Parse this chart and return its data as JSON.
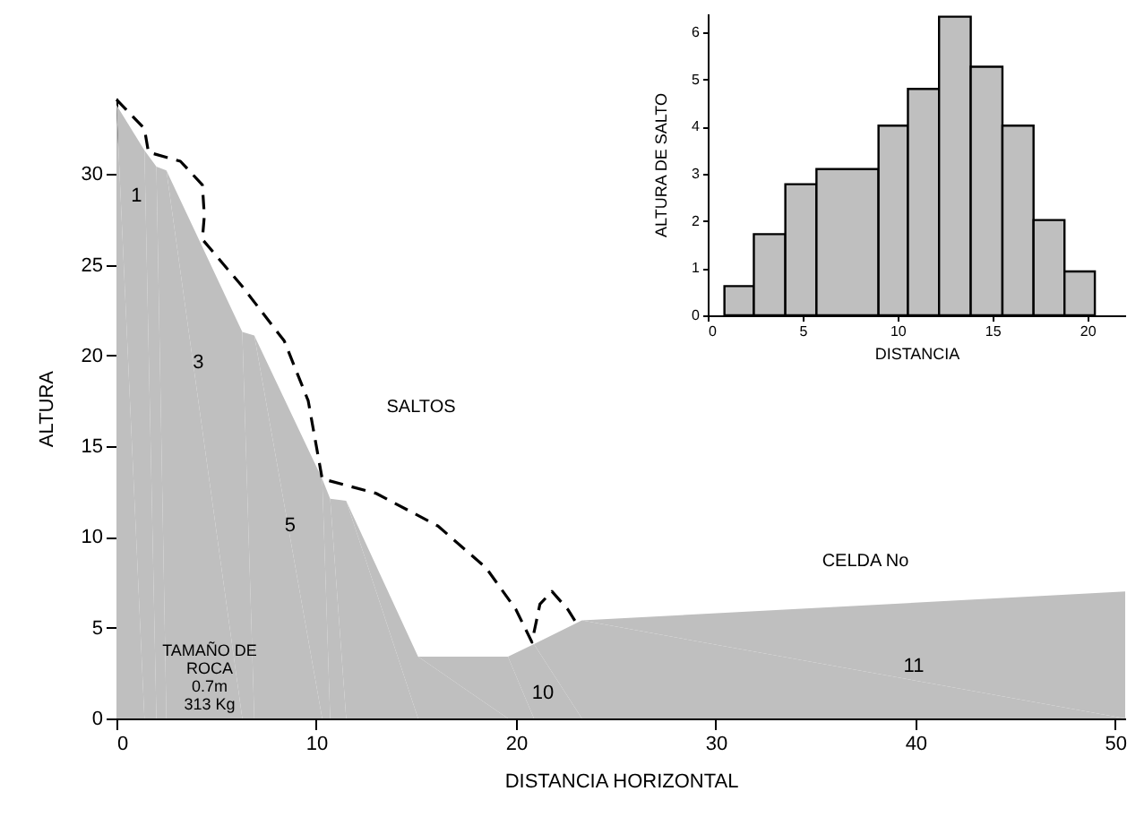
{
  "chart_data": [
    {
      "type": "area",
      "xlabel": "DISTANCIA HORIZONTAL",
      "ylabel": "ALTURA",
      "xlim": [
        0,
        50.5
      ],
      "ylim": [
        0,
        34.2
      ],
      "xticks": [
        0,
        10,
        20,
        30,
        40,
        50
      ],
      "yticks": [
        0,
        5,
        10,
        15,
        20,
        25,
        30
      ],
      "grid": false,
      "series": [
        {
          "type": "area",
          "color": "#bfbfbf",
          "x": [
            0,
            1.4,
            2.0,
            2.5,
            6.3,
            6.9,
            10.3,
            10.7,
            11.5,
            15.1,
            19.6,
            20.9,
            23.3,
            50.5
          ],
          "values": [
            33.8,
            31.3,
            30.4,
            30.2,
            21.3,
            21.1,
            13.2,
            12.1,
            12.0,
            3.4,
            3.4,
            4.1,
            5.4,
            7.0
          ]
        },
        {
          "type": "line",
          "color": "#000000",
          "line_style": "dashed",
          "x": [
            0,
            1.4,
            1.6,
            3.2,
            4.3,
            4.4,
            4.3,
            6.3,
            8.4,
            9.6,
            10.3,
            13.0,
            16.1,
            18.5,
            20.0,
            20.8,
            21.2,
            21.8,
            22.6,
            23.0
          ],
          "values": [
            34.1,
            32.5,
            31.2,
            30.7,
            29.4,
            27.7,
            26.4,
            23.8,
            20.8,
            17.5,
            13.2,
            12.4,
            10.6,
            8.3,
            6.0,
            4.2,
            6.3,
            7.0,
            6.0,
            5.3
          ]
        }
      ],
      "annotations": [
        {
          "text": "1",
          "x": 1.0,
          "y": 28.8
        },
        {
          "text": "3",
          "x": 4.1,
          "y": 19.6
        },
        {
          "text": "5",
          "x": 8.7,
          "y": 10.6
        },
        "10",
        "11",
        "SALTOS",
        "CELDA No",
        "TAMAÑO DE\nROCA\n0.7m\n313 Kg"
      ]
    },
    {
      "type": "histogram",
      "xlabel": "DISTANCIA",
      "ylabel": "ALTURA DE SALTO",
      "xlim": [
        0,
        22
      ],
      "ylim": [
        0,
        6.4
      ],
      "xticks": [
        0,
        5,
        10,
        15,
        20
      ],
      "yticks": [
        0,
        1,
        2,
        3,
        4,
        5,
        6
      ],
      "grid": false,
      "color": "#bfbfbf",
      "bins": [
        0.88,
        2.43,
        4.09,
        5.73,
        9.0,
        10.55,
        12.19,
        13.86,
        15.53,
        17.17,
        18.8,
        20.4
      ],
      "values": [
        0.62,
        1.72,
        2.78,
        3.1,
        4.02,
        4.8,
        6.33,
        5.27,
        4.02,
        2.02,
        0.93
      ]
    }
  ]
}
